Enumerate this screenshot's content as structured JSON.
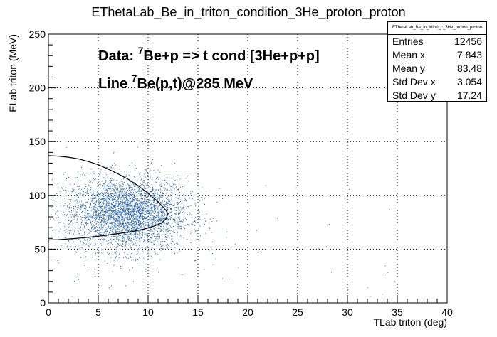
{
  "chart_data": {
    "type": "scatter",
    "title": "EThetaLab_Be_in_triton_condition_3He_proton_proton",
    "xlabel": "TLab triton (deg)",
    "ylabel": "ELab triton (MeV)",
    "xlim": [
      0,
      40
    ],
    "ylim": [
      0,
      250
    ],
    "x_ticks": [
      "0",
      "5",
      "10",
      "15",
      "20",
      "25",
      "30",
      "35",
      "40"
    ],
    "y_ticks": [
      "0",
      "50",
      "100",
      "150",
      "200",
      "250"
    ],
    "grid": true,
    "point_color": "#1f5fa8",
    "cloud": {
      "x_mean": 7.8,
      "x_std": 3.05,
      "y_mean": 83.5,
      "y_std": 17.2,
      "n": 12456
    },
    "curve": {
      "label_prefix": "Line ",
      "label_sup": "7",
      "label_suffix": "Be(p,t)@285 MeV",
      "points": [
        [
          0,
          137
        ],
        [
          1,
          136.5
        ],
        [
          2,
          135.5
        ],
        [
          3,
          134
        ],
        [
          4,
          131.5
        ],
        [
          5,
          128.5
        ],
        [
          6,
          124.5
        ],
        [
          7,
          120
        ],
        [
          8,
          115
        ],
        [
          9,
          109
        ],
        [
          10,
          102
        ],
        [
          11,
          94
        ],
        [
          11.8,
          86
        ],
        [
          12,
          83
        ],
        [
          11.8,
          78
        ],
        [
          11.3,
          74
        ],
        [
          10.5,
          71
        ],
        [
          9.5,
          68.5
        ],
        [
          8.5,
          66.5
        ],
        [
          7,
          64.5
        ],
        [
          5.5,
          62.5
        ],
        [
          4,
          61
        ],
        [
          2.5,
          59.8
        ],
        [
          1,
          58.8
        ],
        [
          0,
          58.5
        ]
      ]
    },
    "annotation": {
      "prefix": "Data: ",
      "sup": "7",
      "suffix": "Be+p => t cond [3He+p+p]"
    },
    "stats": {
      "title": "EThetaLab_Be_in_triton_c_3He_proton_proton",
      "rows": [
        {
          "label": "Entries",
          "value": "12456"
        },
        {
          "label": "Mean x",
          "value": "7.843"
        },
        {
          "label": "Mean y",
          "value": "83.48"
        },
        {
          "label": "Std Dev x",
          "value": "3.054"
        },
        {
          "label": "Std Dev y",
          "value": "17.24"
        }
      ]
    }
  }
}
